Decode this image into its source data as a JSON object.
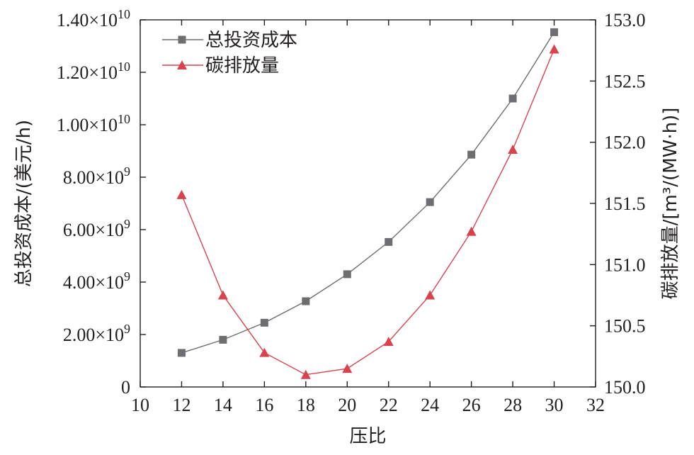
{
  "chart_data": {
    "type": "line",
    "xlabel": "压比",
    "ylabel_left": "总投资成本/(美元/h)",
    "ylabel_right": "碳排放量/[m³/(MW·h)]",
    "xlim": [
      10,
      32
    ],
    "ylim_left": [
      0,
      14000000000
    ],
    "ylim_right": [
      150.0,
      153.0
    ],
    "x_ticks": [
      "10",
      "12",
      "14",
      "16",
      "18",
      "20",
      "22",
      "24",
      "26",
      "28",
      "30",
      "32"
    ],
    "y_left_ticks": [
      {
        "value": 0,
        "mant": "0",
        "exp": ""
      },
      {
        "value": 2000000000,
        "mant": "2.00×10",
        "exp": "9"
      },
      {
        "value": 4000000000,
        "mant": "4.00×10",
        "exp": "9"
      },
      {
        "value": 6000000000,
        "mant": "6.00×10",
        "exp": "9"
      },
      {
        "value": 8000000000,
        "mant": "8.00×10",
        "exp": "9"
      },
      {
        "value": 10000000000,
        "mant": "1.00×10",
        "exp": "10"
      },
      {
        "value": 12000000000,
        "mant": "1.20×10",
        "exp": "10"
      },
      {
        "value": 14000000000,
        "mant": "1.40×10",
        "exp": "10"
      }
    ],
    "y_right_ticks": [
      "150.0",
      "150.5",
      "151.0",
      "151.5",
      "152.0",
      "152.5",
      "153.0"
    ],
    "x": [
      12,
      14,
      16,
      18,
      20,
      22,
      24,
      26,
      28,
      30
    ],
    "series": [
      {
        "name": "总投资成本",
        "axis": "left",
        "marker": "square",
        "color": "#6d6e71",
        "values": [
          1300000000,
          1800000000,
          2450000000,
          3270000000,
          4300000000,
          5530000000,
          7050000000,
          8860000000,
          11000000000,
          13530000000
        ]
      },
      {
        "name": "碳排放量",
        "axis": "right",
        "marker": "triangle",
        "color": "#d9434e",
        "values": [
          151.57,
          150.75,
          150.28,
          150.1,
          150.15,
          150.37,
          150.75,
          151.27,
          151.94,
          152.76
        ]
      }
    ],
    "legend_position": "top-left",
    "grid": false
  }
}
